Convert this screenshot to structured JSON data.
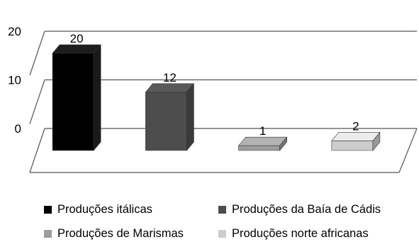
{
  "chart_data": {
    "type": "bar",
    "categories": [
      "Produções itálicas",
      "Produções da Baía de Cádis",
      "Produções de Marismas",
      "Produções norte africanas"
    ],
    "values": [
      20,
      12,
      1,
      2
    ],
    "data_labels": [
      "20",
      "12",
      "1",
      "2"
    ],
    "y_ticks": [
      "0",
      "10",
      "20"
    ],
    "ylim": [
      0,
      20
    ],
    "grid": true,
    "style": "3d-column",
    "legend_position": "bottom",
    "colors": [
      "#000000",
      "#4d4d4d",
      "#9c9c9c",
      "#cdcdcd"
    ],
    "legend": [
      {
        "label": "Produções itálicas",
        "color": "#000000"
      },
      {
        "label": "Produções da Baía de Cádis",
        "color": "#4d4d4d"
      },
      {
        "label": "Produções de Marismas",
        "color": "#9c9c9c"
      },
      {
        "label": "Produções norte africanas",
        "color": "#cdcdcd"
      }
    ]
  }
}
